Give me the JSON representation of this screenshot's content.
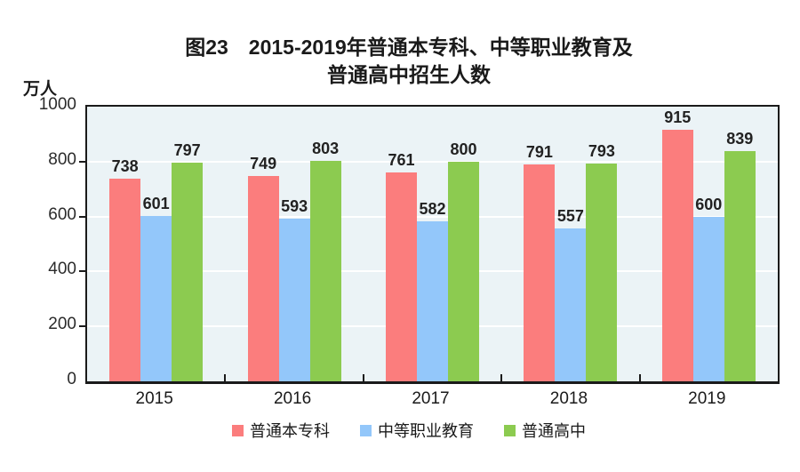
{
  "header": {
    "title_line1": "图23　2015-2019年普通本专科、中等职业教育及",
    "title_line2": "普通高中招生人数"
  },
  "chart_data": {
    "type": "bar",
    "title": "图23 2015-2019年普通本专科、中等职业教育及普通高中招生人数",
    "unit_label": "万人",
    "categories": [
      "2015",
      "2016",
      "2017",
      "2018",
      "2019"
    ],
    "series": [
      {
        "name": "普通本专科",
        "color": "#FB7D7D",
        "values": [
          738,
          749,
          761,
          791,
          915
        ]
      },
      {
        "name": "中等职业教育",
        "color": "#93C7FA",
        "values": [
          601,
          593,
          582,
          557,
          600
        ]
      },
      {
        "name": "普通高中",
        "color": "#8CCB50",
        "values": [
          797,
          803,
          800,
          793,
          839
        ]
      }
    ],
    "ylabel": "万人",
    "xlabel": "",
    "ylim": [
      0,
      1000
    ],
    "yticks": [
      0,
      200,
      400,
      600,
      800,
      1000
    ],
    "grid": "horizontal-white-on-light-blue",
    "plot_background": "#EBF3F6",
    "gridline_color": "#FFFFFF",
    "axis_color": "#1A1A1A",
    "legend_position": "bottom",
    "value_labels": "above-bars"
  }
}
